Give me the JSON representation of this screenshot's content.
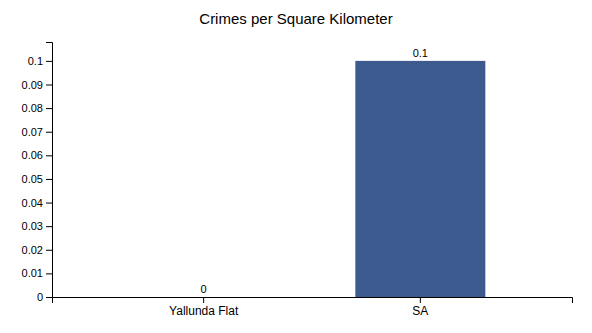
{
  "chart_data": {
    "type": "bar",
    "title": "Crimes per Square Kilometer",
    "categories": [
      "Yallunda Flat",
      "SA"
    ],
    "values": [
      0,
      0.1
    ],
    "color": "#3d5a8e",
    "ylim": [
      0,
      0.108
    ],
    "yticks": [
      0,
      0.01,
      0.02,
      0.03,
      0.04,
      0.05,
      0.06,
      0.07,
      0.08,
      0.09,
      0.1
    ],
    "grid": false,
    "data_labels": true
  }
}
